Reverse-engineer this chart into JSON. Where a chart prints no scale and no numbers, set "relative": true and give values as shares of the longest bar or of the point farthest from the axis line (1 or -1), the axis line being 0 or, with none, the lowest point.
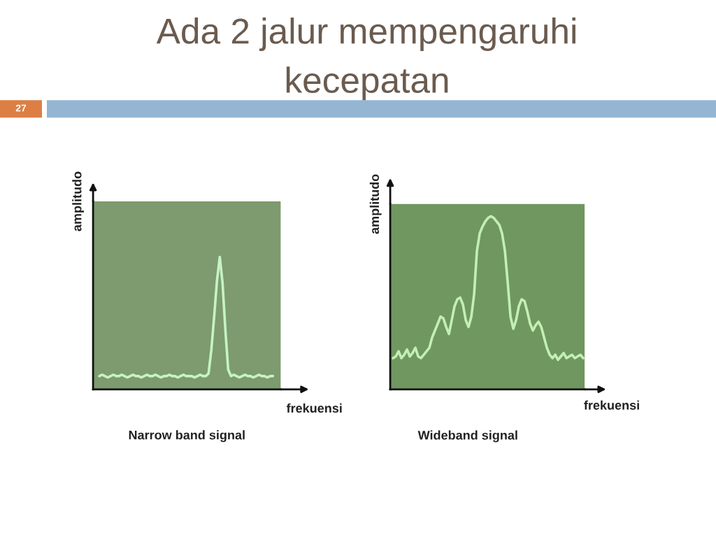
{
  "chart_data": [
    {
      "type": "other",
      "title": "Ada 2 jalur mempengaruhi\nkecepatan",
      "annotations": [
        "27"
      ]
    },
    {
      "type": "line",
      "title": "Narrow band signal",
      "xlabel": "frekuensi",
      "ylabel": "amplitudo",
      "relative": true,
      "categories": [
        null,
        null,
        null,
        null,
        null,
        null,
        null,
        null,
        null,
        null,
        null,
        null,
        null,
        null,
        null,
        null,
        null,
        null,
        null,
        null,
        null,
        null,
        null,
        null,
        null,
        null,
        null,
        null,
        null,
        null,
        null,
        null,
        null,
        null,
        null,
        null,
        null,
        null,
        null,
        null,
        null,
        null,
        null,
        null,
        null,
        null,
        null,
        null,
        null,
        null,
        null,
        null,
        null,
        null,
        null,
        null,
        null,
        null,
        null,
        null,
        null,
        null,
        null
      ],
      "series": [
        {
          "color": "#c6f3c4",
          "values": [
            0.1,
            0.11,
            0.1,
            0.09,
            0.1,
            0.11,
            0.1,
            0.1,
            0.11,
            0.1,
            0.09,
            0.1,
            0.11,
            0.1,
            0.1,
            0.09,
            0.1,
            0.11,
            0.1,
            0.1,
            0.11,
            0.1,
            0.09,
            0.1,
            0.1,
            0.11,
            0.1,
            0.1,
            0.09,
            0.1,
            0.11,
            0.1,
            0.1,
            0.1,
            0.09,
            0.1,
            0.11,
            0.1,
            0.1,
            0.12,
            0.3,
            0.55,
            0.82,
            1.0,
            0.8,
            0.45,
            0.15,
            0.1,
            0.11,
            0.1,
            0.09,
            0.1,
            0.11,
            0.1,
            0.1,
            0.09,
            0.1,
            0.11,
            0.1,
            0.1,
            0.09,
            0.1,
            0.1
          ]
        }
      ]
    },
    {
      "type": "line",
      "title": "Wideband signal",
      "xlabel": "frekuensi",
      "ylabel": "amplitudo",
      "relative": true,
      "categories": [
        null,
        null,
        null,
        null,
        null,
        null,
        null,
        null,
        null,
        null,
        null,
        null,
        null,
        null,
        null,
        null,
        null,
        null,
        null,
        null,
        null,
        null,
        null,
        null,
        null,
        null,
        null,
        null,
        null,
        null,
        null,
        null,
        null,
        null,
        null,
        null,
        null,
        null,
        null,
        null,
        null,
        null,
        null,
        null,
        null,
        null,
        null,
        null,
        null,
        null,
        null,
        null,
        null,
        null,
        null,
        null,
        null,
        null,
        null,
        null,
        null,
        null,
        null,
        null,
        null,
        null,
        null,
        null,
        null
      ],
      "series": [
        {
          "color": "#c2efb4",
          "values": [
            0.18,
            0.19,
            0.22,
            0.18,
            0.2,
            0.23,
            0.19,
            0.21,
            0.24,
            0.19,
            0.18,
            0.2,
            0.22,
            0.24,
            0.3,
            0.34,
            0.38,
            0.42,
            0.41,
            0.36,
            0.32,
            0.4,
            0.48,
            0.52,
            0.53,
            0.49,
            0.4,
            0.36,
            0.42,
            0.55,
            0.8,
            0.9,
            0.94,
            0.97,
            0.99,
            1.0,
            0.99,
            0.97,
            0.95,
            0.9,
            0.8,
            0.62,
            0.42,
            0.35,
            0.4,
            0.48,
            0.52,
            0.51,
            0.45,
            0.38,
            0.34,
            0.37,
            0.39,
            0.36,
            0.3,
            0.24,
            0.2,
            0.18,
            0.2,
            0.17,
            0.19,
            0.21,
            0.18,
            0.19,
            0.2,
            0.18,
            0.19,
            0.2,
            0.18
          ]
        }
      ]
    }
  ]
}
